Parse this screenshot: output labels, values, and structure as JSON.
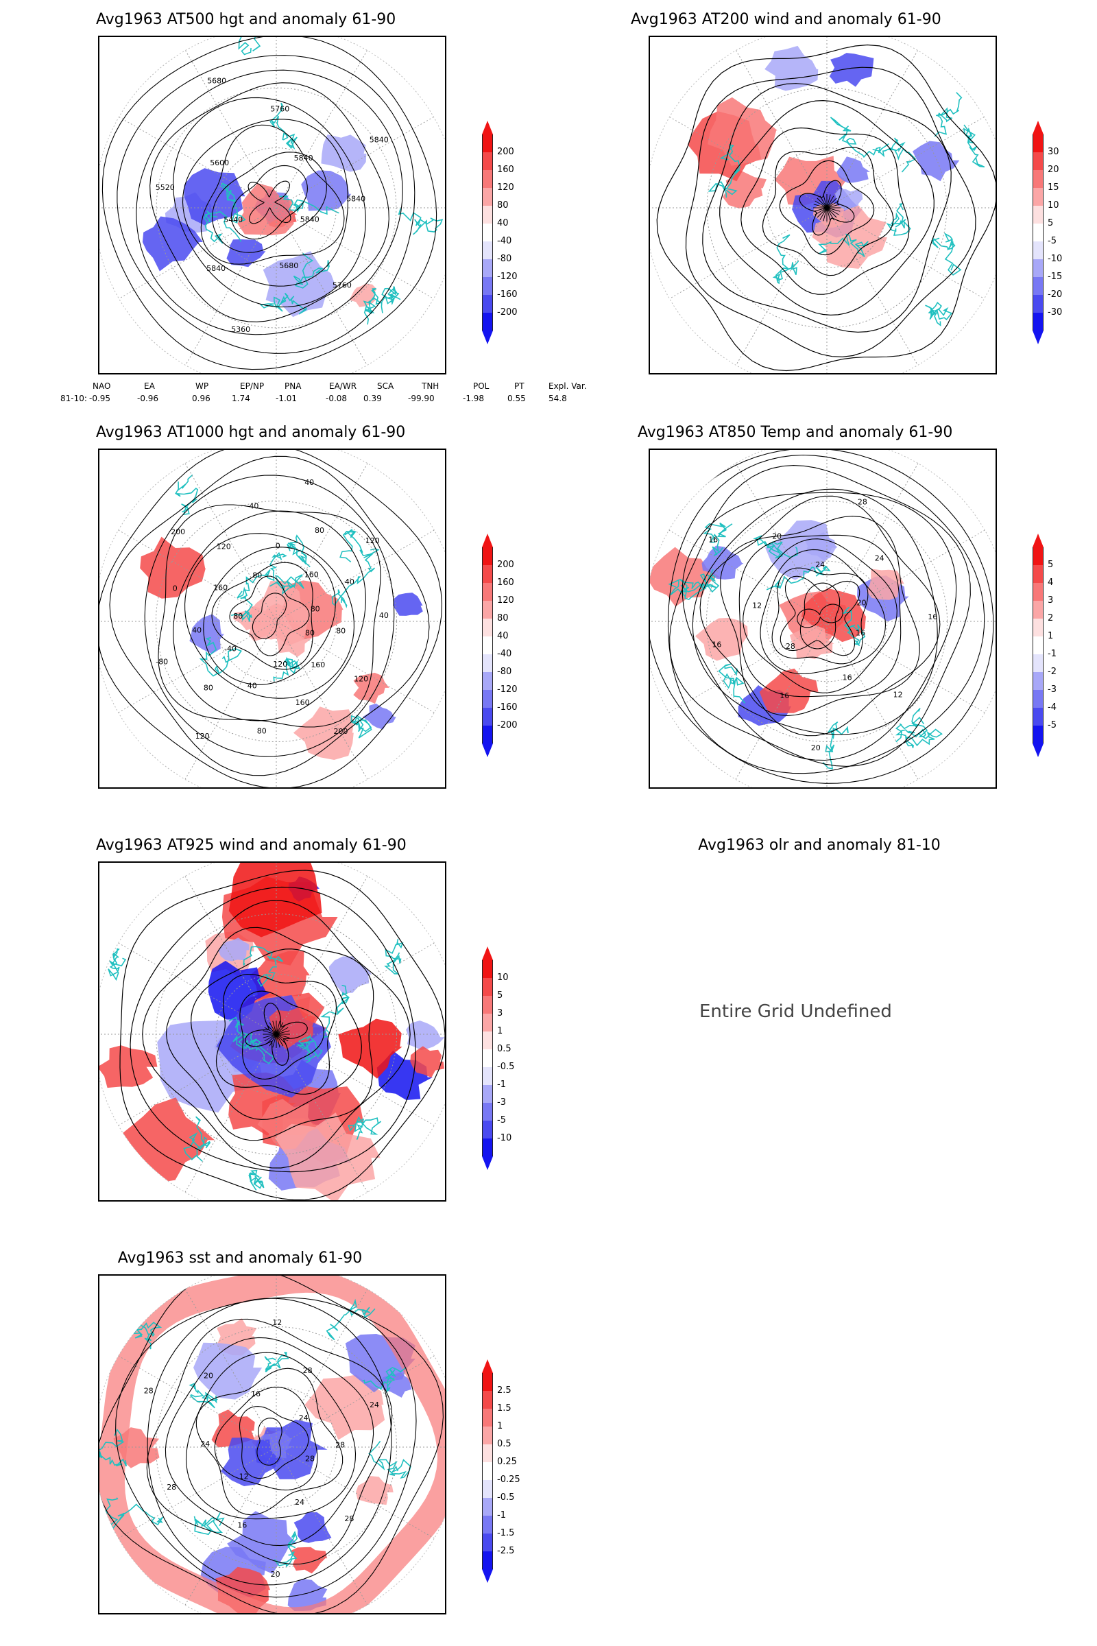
{
  "panels": {
    "p1": {
      "title": "Avg1963 AT500 hgt and anomaly 61-90",
      "contour_labels": [
        "5840",
        "5760",
        "5680",
        "5360",
        "5840",
        "5440",
        "5520",
        "5600",
        "5680",
        "5760",
        "5840",
        "5840",
        "5840"
      ]
    },
    "p2": {
      "title": "Avg1963 AT200 wind and anomaly 61-90"
    },
    "p3": {
      "title": "Avg1963 AT1000 hgt and anomaly 61-90",
      "contour_labels": [
        "80",
        "120",
        "160",
        "200",
        "160",
        "120",
        "80",
        "40",
        "120",
        "80",
        "-40",
        "-80",
        "40",
        "80",
        "0",
        "160",
        "200",
        "120",
        "80",
        "40",
        "0",
        "40",
        "80",
        "160",
        "120",
        "40",
        "80",
        "40",
        "80"
      ]
    },
    "p4": {
      "title": "Avg1963 AT850 Temp and anomaly 61-90",
      "contour_labels": [
        "16",
        "12",
        "16",
        "20",
        "16",
        "28",
        "16",
        "12",
        "16",
        "20",
        "24",
        "28",
        "24",
        "20",
        "16"
      ]
    },
    "p5": {
      "title": "Avg1963 AT925 wind and anomaly 61-90"
    },
    "p6": {
      "title": "Avg1963 olr and anomaly 81-10",
      "message": "Entire Grid Undefined"
    },
    "p7": {
      "title": "Avg1963 sst and anomaly 61-90",
      "contour_labels": [
        "28",
        "28",
        "24",
        "20",
        "16",
        "12",
        "28",
        "24",
        "28",
        "20",
        "16",
        "12",
        "28",
        "24",
        "24",
        "28"
      ]
    }
  },
  "colorbars": {
    "hgt500": [
      "200",
      "160",
      "120",
      "80",
      "40",
      "-40",
      "-80",
      "-120",
      "-160",
      "-200"
    ],
    "wind200": [
      "30",
      "20",
      "15",
      "10",
      "5",
      "-5",
      "-10",
      "-15",
      "-20",
      "-30"
    ],
    "hgt1000": [
      "200",
      "160",
      "120",
      "80",
      "40",
      "-40",
      "-80",
      "-120",
      "-160",
      "-200"
    ],
    "temp850": [
      "5",
      "4",
      "3",
      "2",
      "1",
      "-1",
      "-2",
      "-3",
      "-4",
      "-5"
    ],
    "wind925": [
      "10",
      "5",
      "3",
      "1",
      "0.5",
      "-0.5",
      "-1",
      "-3",
      "-5",
      "-10"
    ],
    "sst": [
      "2.5",
      "1.5",
      "1",
      "0.5",
      "0.25",
      "-0.25",
      "-0.5",
      "-1",
      "-1.5",
      "-2.5"
    ]
  },
  "colors": {
    "positive": [
      "#f01414",
      "#f44a4a",
      "#f87878",
      "#fba6a6",
      "#fde0e0"
    ],
    "negative": [
      "#e4e4fc",
      "#a8a8f8",
      "#7878f4",
      "#4a4af0",
      "#1414f0"
    ],
    "coastline": "#20c0c0",
    "contour": "#000000"
  },
  "teleconnection": {
    "headers": [
      "NAO",
      "EA",
      "WP",
      "EP/NP",
      "PNA",
      "EA/WR",
      "SCA",
      "TNH",
      "POL",
      "PT",
      "Expl. Var."
    ],
    "row_label": "81-10:",
    "values": [
      "-0.95",
      "-0.96",
      "0.96",
      "1.74",
      "-1.01",
      "-0.08",
      "0.39",
      "-99.90",
      "-1.98",
      "0.55",
      "54.8"
    ]
  }
}
